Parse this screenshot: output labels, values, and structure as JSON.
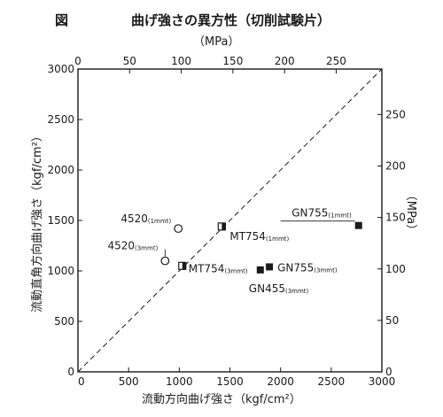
{
  "chart_data": {
    "type": "scatter",
    "fig_label": "図",
    "title": "曲げ強さの異方性（切削試験片）",
    "xlabel": "流動方向曲げ強さ（kgf/cm²）",
    "ylabel": "流動直角方向曲げ強さ（kgf/cm²）",
    "x2label": "（MPa）",
    "y2label": "（MPa）",
    "xlim": [
      0,
      3000
    ],
    "ylim": [
      0,
      3000
    ],
    "x_ticks": [
      "0",
      "500",
      "1000",
      "1500",
      "2000",
      "2500",
      "3000"
    ],
    "y_ticks": [
      "0",
      "500",
      "1000",
      "1500",
      "2000",
      "2500",
      "3000"
    ],
    "x2_ticks": [
      "0",
      "50",
      "100",
      "150",
      "200",
      "250"
    ],
    "y2_ticks": [
      "0",
      "50",
      "100",
      "150",
      "200",
      "250"
    ],
    "reference_line": "y = x",
    "points": [
      {
        "name": "4520",
        "sub": "(1mmt)",
        "x": 990,
        "y": 1420,
        "marker": "open-circle"
      },
      {
        "name": "4520",
        "sub": "(3mmt)",
        "x": 860,
        "y": 1100,
        "marker": "open-circle"
      },
      {
        "name": "MT754",
        "sub": "(1mmt)",
        "x": 1420,
        "y": 1440,
        "marker": "half-square"
      },
      {
        "name": "MT754",
        "sub": "(3mmt)",
        "x": 1030,
        "y": 1050,
        "marker": "half-square"
      },
      {
        "name": "GN755",
        "sub": "(1mmt)",
        "x": 2770,
        "y": 1450,
        "marker": "filled-square"
      },
      {
        "name": "GN755",
        "sub": "(3mmt)",
        "x": 1890,
        "y": 1040,
        "marker": "filled-square"
      },
      {
        "name": "GN455",
        "sub": "(3mmt)",
        "x": 1800,
        "y": 1010,
        "marker": "filled-square"
      }
    ]
  }
}
